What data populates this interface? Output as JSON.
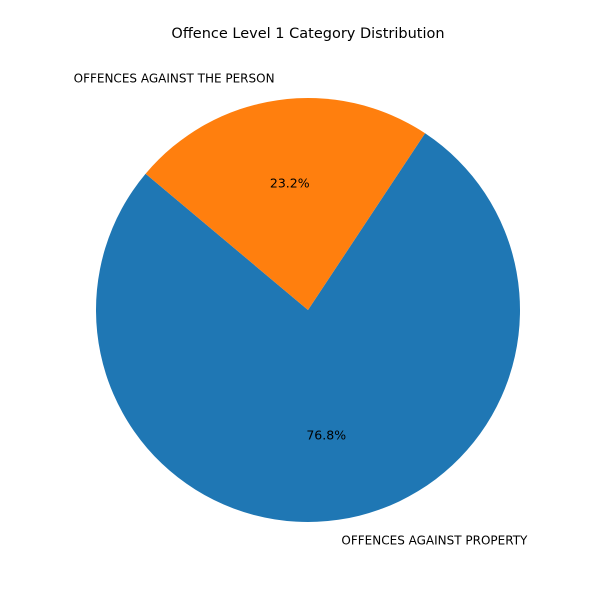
{
  "chart_data": {
    "type": "pie",
    "title": "Offence Level 1 Category Distribution",
    "categories": [
      "OFFENCES AGAINST PROPERTY",
      "OFFENCES AGAINST THE PERSON"
    ],
    "values": [
      76.8,
      23.2
    ],
    "percent_labels": [
      "76.8%",
      "23.2%"
    ],
    "colors": [
      "#1f77b4",
      "#ff7f0e"
    ],
    "start_angle_deg": 140,
    "direction": "counterclockwise",
    "legend": "none"
  }
}
